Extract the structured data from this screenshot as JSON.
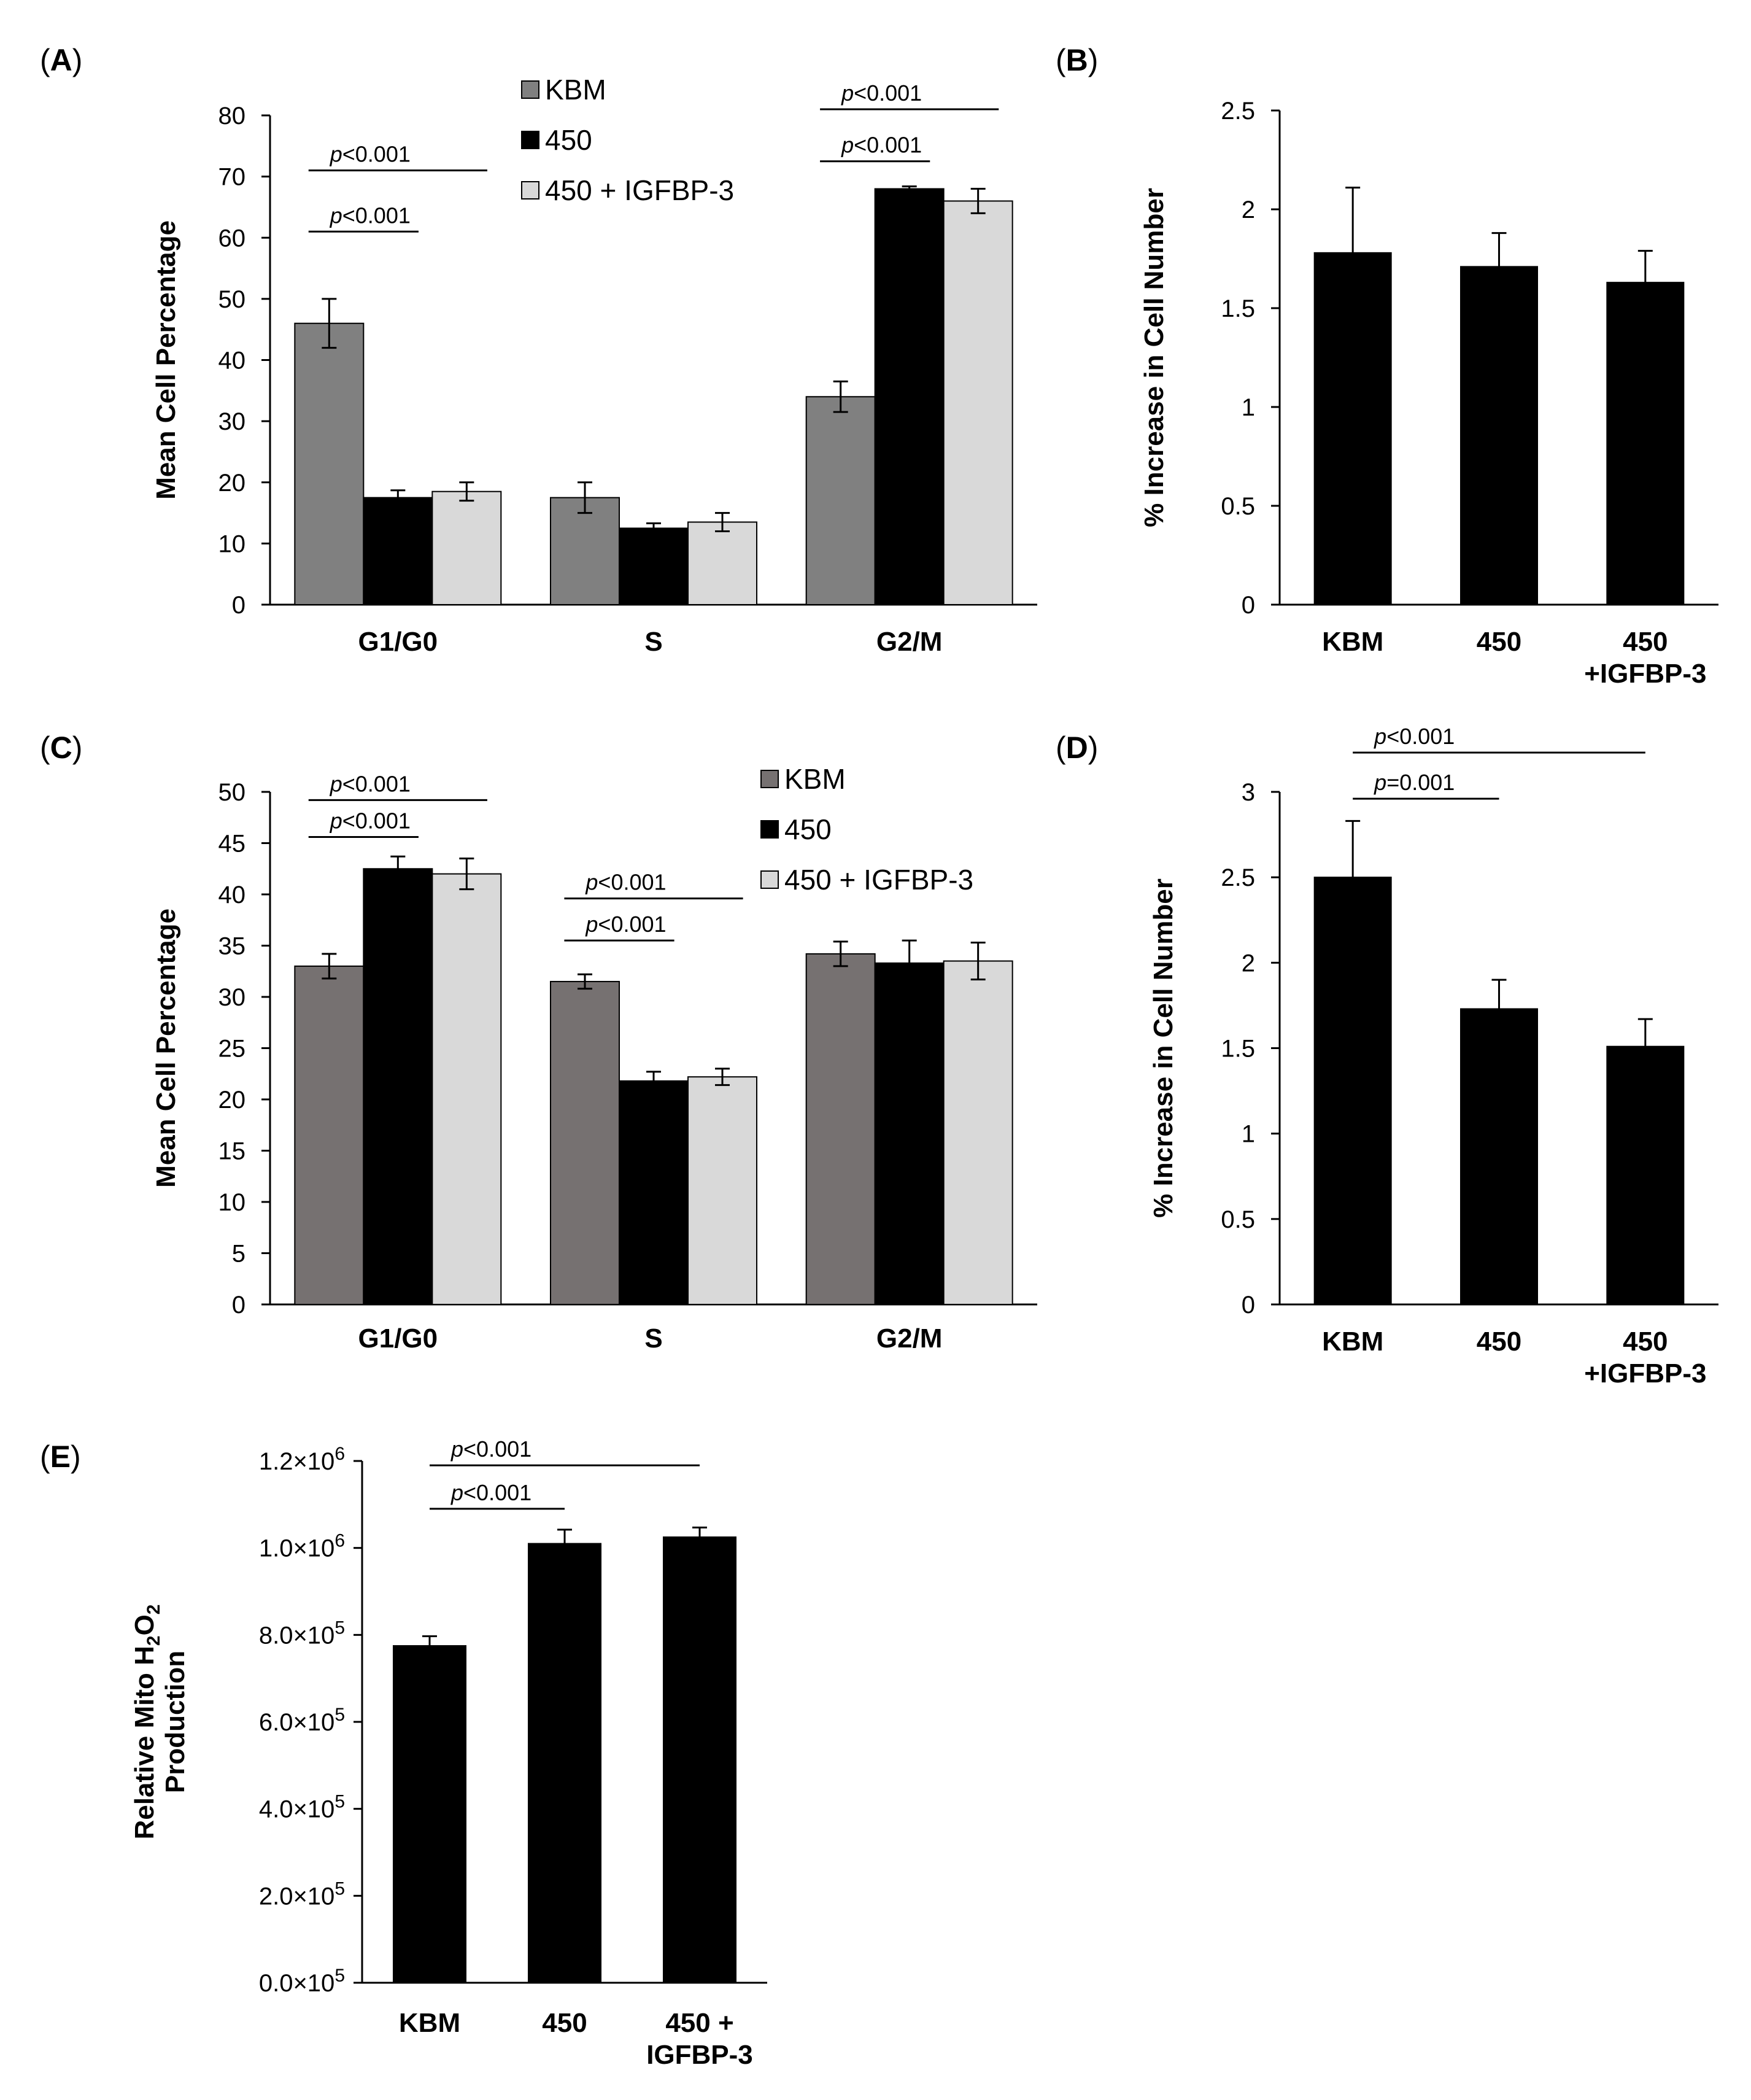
{
  "chart_data": [
    {
      "id": "A",
      "panel_label": "A",
      "type": "bar",
      "ylabel": "Mean Cell Percentage",
      "ylim": [
        0,
        80
      ],
      "yticks": [
        "0",
        "10",
        "20",
        "30",
        "40",
        "50",
        "60",
        "70",
        "80"
      ],
      "categories": [
        "G1/G0",
        "S",
        "G2/M"
      ],
      "series": [
        {
          "name": "KBM",
          "color": "#808080",
          "values": [
            46,
            17.5,
            34
          ],
          "errors": [
            4.0,
            2.5,
            2.5
          ]
        },
        {
          "name": "450",
          "color": "#000000",
          "values": [
            17.5,
            12.5,
            68
          ],
          "errors": [
            1.2,
            0.8,
            0.4
          ]
        },
        {
          "name": "450 + IGFBP-3",
          "color": "#d9d9d9",
          "values": [
            18.5,
            13.5,
            66
          ],
          "errors": [
            1.5,
            1.5,
            2.0
          ]
        }
      ],
      "legend": [
        "KBM",
        "450",
        "450 + IGFBP-3"
      ],
      "significance": [
        {
          "text": "p<0.001",
          "group": 0,
          "from": 0,
          "to": 1,
          "y": 61
        },
        {
          "text": "p<0.001",
          "group": 0,
          "from": 0,
          "to": 2,
          "y": 71
        },
        {
          "text": "p<0.001",
          "group": 2,
          "from": 0,
          "to": 1,
          "y": 72.5
        },
        {
          "text": "p<0.001",
          "group": 2,
          "from": 0,
          "to": 2,
          "y": 81
        }
      ]
    },
    {
      "id": "B",
      "panel_label": "B",
      "type": "bar",
      "ylabel": "% Increase in Cell Number",
      "ylim": [
        0,
        2.5
      ],
      "yticks": [
        "0",
        "0.5",
        "1",
        "1.5",
        "2",
        "2.5"
      ],
      "categories": [
        [
          "KBM"
        ],
        [
          "450"
        ],
        [
          "450",
          "+IGFBP-3"
        ]
      ],
      "series": [
        {
          "name": "",
          "color": "#000000",
          "values": [
            1.78,
            1.71,
            1.63
          ],
          "errors": [
            0.33,
            0.17,
            0.16
          ]
        }
      ],
      "significance": []
    },
    {
      "id": "C",
      "panel_label": "C",
      "type": "bar",
      "ylabel": "Mean Cell Percentage",
      "ylim": [
        0,
        50
      ],
      "yticks": [
        "0",
        "5",
        "10",
        "15",
        "20",
        "25",
        "30",
        "35",
        "40",
        "45",
        "50"
      ],
      "categories": [
        "G1/G0",
        "S",
        "G2/M"
      ],
      "series": [
        {
          "name": "KBM",
          "color": "#767171",
          "values": [
            33,
            31.5,
            34.2
          ],
          "errors": [
            1.2,
            0.7,
            1.2
          ]
        },
        {
          "name": "450",
          "color": "#000000",
          "values": [
            42.5,
            21.8,
            33.3
          ],
          "errors": [
            1.2,
            0.9,
            2.2
          ]
        },
        {
          "name": "450 + IGFBP-3",
          "color": "#d9d9d9",
          "values": [
            42,
            22.2,
            33.5
          ],
          "errors": [
            1.5,
            0.8,
            1.8
          ]
        }
      ],
      "legend": [
        "KBM",
        "450",
        "450 + IGFBP-3"
      ],
      "significance": [
        {
          "text": "p<0.001",
          "group": 0,
          "from": 0,
          "to": 1,
          "y": 45.6
        },
        {
          "text": "p<0.001",
          "group": 0,
          "from": 0,
          "to": 2,
          "y": 49.2
        },
        {
          "text": "p<0.001",
          "group": 1,
          "from": 0,
          "to": 1,
          "y": 35.5
        },
        {
          "text": "p<0.001",
          "group": 1,
          "from": 0,
          "to": 2,
          "y": 39.6
        }
      ]
    },
    {
      "id": "D",
      "panel_label": "D",
      "type": "bar",
      "ylabel": "% Increase in Cell Number",
      "ylim": [
        0,
        3
      ],
      "yticks": [
        "0",
        "0.5",
        "1",
        "1.5",
        "2",
        "2.5",
        "3"
      ],
      "categories": [
        [
          "KBM"
        ],
        [
          "450"
        ],
        [
          "450",
          "+IGFBP-3"
        ]
      ],
      "series": [
        {
          "name": "",
          "color": "#000000",
          "values": [
            2.5,
            1.73,
            1.51
          ],
          "errors": [
            0.33,
            0.17,
            0.16
          ]
        }
      ],
      "significance": [
        {
          "text": "p=0.001",
          "from": 0,
          "to": 1,
          "y": 2.96
        },
        {
          "text": "p<0.001",
          "from": 0,
          "to": 2,
          "y": 3.23
        }
      ]
    },
    {
      "id": "E",
      "panel_label": "E",
      "type": "bar",
      "ylabel": "Relative Mito H2O2 Production",
      "ylim": [
        0,
        1200000
      ],
      "yticks": [
        {
          "mant": "0.0",
          "exp": "5"
        },
        {
          "mant": "2.0",
          "exp": "5"
        },
        {
          "mant": "4.0",
          "exp": "5"
        },
        {
          "mant": "6.0",
          "exp": "5"
        },
        {
          "mant": "8.0",
          "exp": "5"
        },
        {
          "mant": "1.0",
          "exp": "6"
        },
        {
          "mant": "1.2",
          "exp": "6"
        }
      ],
      "categories": [
        [
          "KBM"
        ],
        [
          "450"
        ],
        [
          "450 +",
          "IGFBP-3"
        ]
      ],
      "series": [
        {
          "name": "",
          "color": "#000000",
          "values": [
            775000,
            1010000,
            1025000
          ],
          "errors": [
            22000,
            32000,
            22000
          ]
        }
      ],
      "significance": [
        {
          "text": "p<0.001",
          "from": 0,
          "to": 1,
          "y": 1090000
        },
        {
          "text": "p<0.001",
          "from": 0,
          "to": 2,
          "y": 1190000
        }
      ]
    }
  ]
}
